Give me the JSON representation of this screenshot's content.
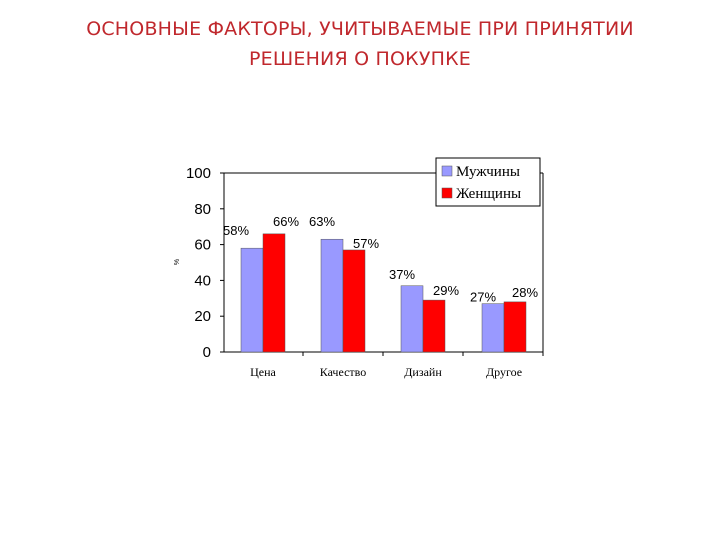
{
  "page": {
    "title_line1": "ОСНОВНЫЕ ФАКТОРЫ, УЧИТЫВАЕМЫЕ ПРИ ПРИНЯТИИ",
    "title_line2": "РЕШЕНИЯ О ПОКУПКЕ"
  },
  "chart_data": {
    "type": "bar",
    "categories": [
      "Цена",
      "Качество",
      "Дизайн",
      "Другое"
    ],
    "series": [
      {
        "name": "Мужчины",
        "color": "#9999ff",
        "values": [
          58,
          63,
          37,
          27
        ],
        "labels": [
          "58%",
          "63%",
          "37%",
          "27%"
        ]
      },
      {
        "name": "Женщины",
        "color": "#ff0000",
        "values": [
          66,
          57,
          29,
          28
        ],
        "labels": [
          "66%",
          "57%",
          "29%",
          "28%"
        ]
      }
    ],
    "ylabel": "%",
    "ylim": [
      0,
      100
    ],
    "yticks": [
      0,
      20,
      40,
      60,
      80,
      100
    ],
    "grid": false,
    "legend_position": "top-right"
  }
}
